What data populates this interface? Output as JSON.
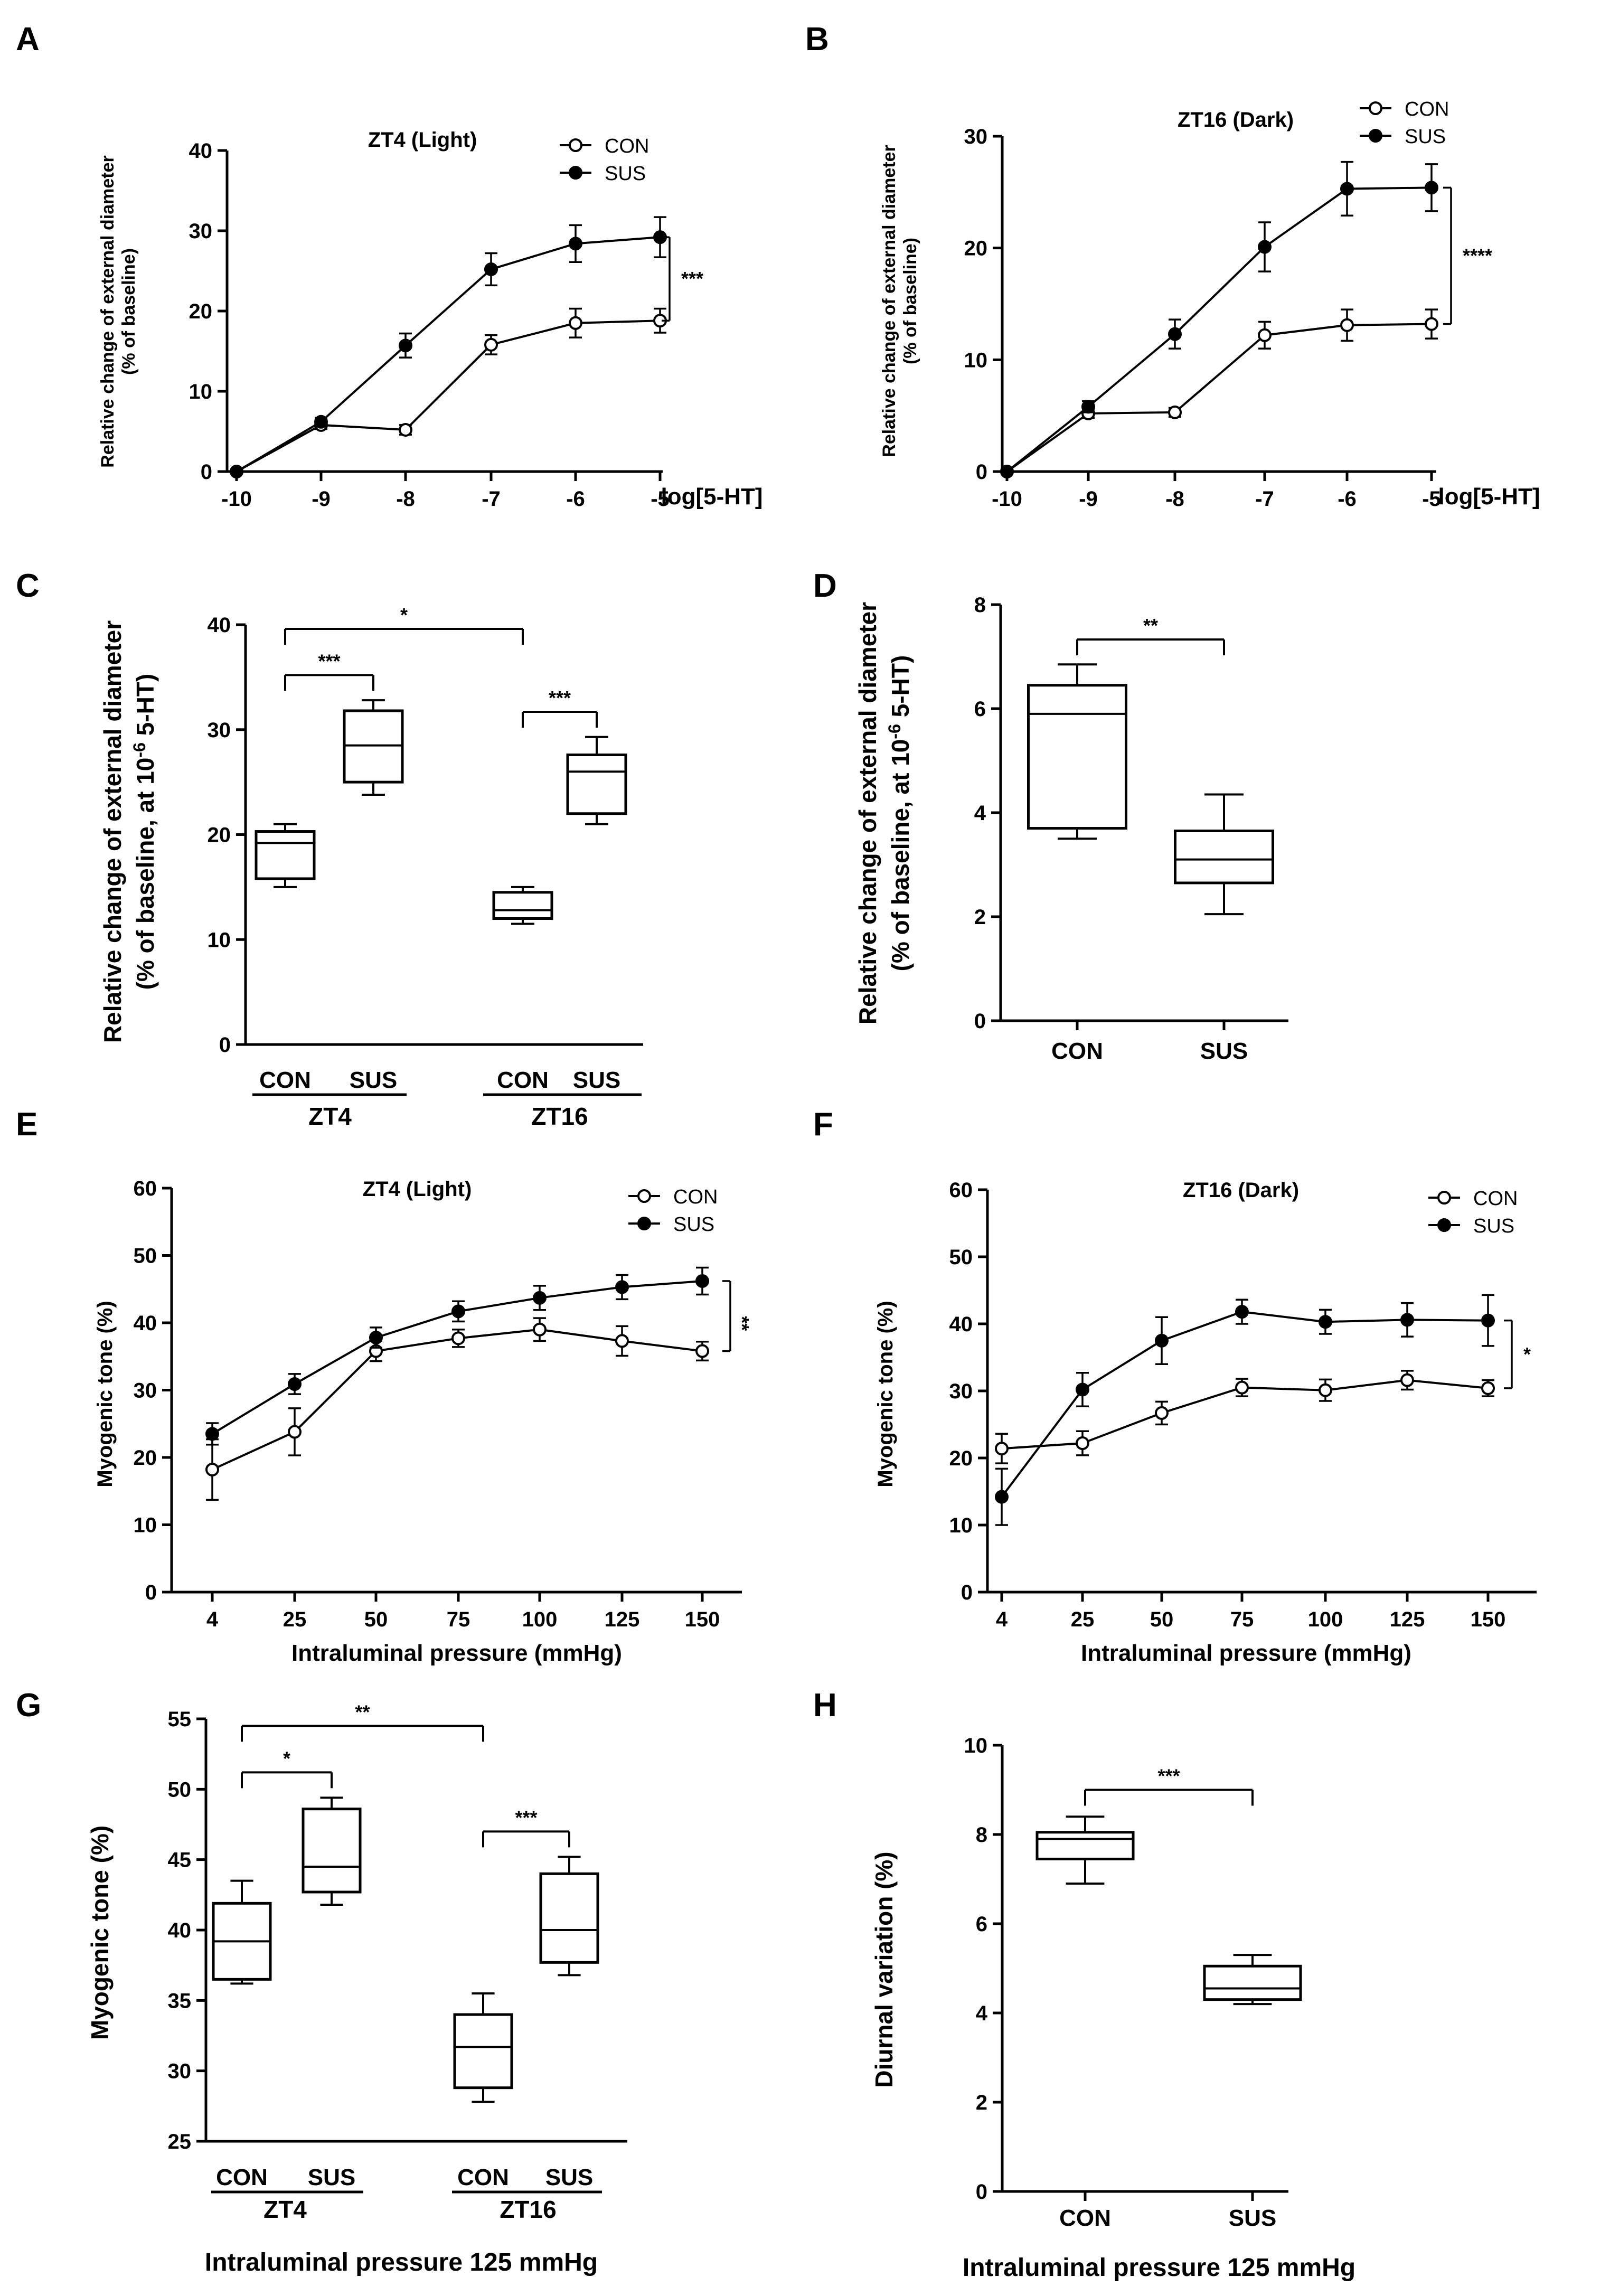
{
  "panels": [
    {
      "id": "A",
      "letter": "A",
      "kind": "line",
      "chart_data": {
        "type": "line",
        "title": "ZT4 (Light)",
        "xlabel": "log[5-HT]",
        "ylabel_lines": [
          "Relative change of external diameter",
          "(% of baseline)"
        ],
        "categories": [
          "-10",
          "-9",
          "-8",
          "-7",
          "-6",
          "-5"
        ],
        "ylim": [
          0,
          40
        ],
        "yticks": [
          0,
          10,
          20,
          30,
          40
        ],
        "legend": "top-right",
        "series": [
          {
            "name": "CON",
            "marker": "open",
            "values": [
              0,
              5.8,
              5.2,
              15.8,
              18.5,
              18.8
            ],
            "errors": [
              0.3,
              0.5,
              0.6,
              1.2,
              1.8,
              1.5
            ]
          },
          {
            "name": "SUS",
            "marker": "filled",
            "values": [
              0,
              6.2,
              15.7,
              25.2,
              28.4,
              29.2
            ],
            "errors": [
              0.3,
              0.5,
              1.5,
              2.0,
              2.3,
              2.5
            ]
          }
        ],
        "annotations": [
          {
            "text": "***",
            "between": [
              "CON",
              "SUS"
            ],
            "at": "-5"
          }
        ]
      }
    },
    {
      "id": "B",
      "letter": "B",
      "kind": "line",
      "chart_data": {
        "type": "line",
        "title": "ZT16 (Dark)",
        "xlabel": "log[5-HT]",
        "ylabel_lines": [
          "Relative change of external diameter",
          "(% of baseline)"
        ],
        "categories": [
          "-10",
          "-9",
          "-8",
          "-7",
          "-6",
          "-5"
        ],
        "ylim": [
          0,
          30
        ],
        "yticks": [
          0,
          10,
          20,
          30
        ],
        "legend": "top-right",
        "series": [
          {
            "name": "CON",
            "marker": "open",
            "values": [
              0,
              5.2,
              5.3,
              12.2,
              13.1,
              13.2
            ],
            "errors": [
              0.2,
              0.4,
              0.4,
              1.2,
              1.4,
              1.3
            ]
          },
          {
            "name": "SUS",
            "marker": "filled",
            "values": [
              0,
              5.8,
              12.3,
              20.1,
              25.3,
              25.4
            ],
            "errors": [
              0.2,
              0.5,
              1.3,
              2.2,
              2.4,
              2.1
            ]
          }
        ],
        "annotations": [
          {
            "text": "****",
            "between": [
              "CON",
              "SUS"
            ],
            "at": "-5"
          }
        ]
      }
    },
    {
      "id": "C",
      "letter": "C",
      "kind": "box",
      "chart_data": {
        "type": "box",
        "ylabel_lines": [
          "Relative change of external diameter",
          "(% of baseline, at 10^-6 5-HT)"
        ],
        "ylim": [
          0,
          40
        ],
        "yticks": [
          0,
          10,
          20,
          30,
          40
        ],
        "groups": [
          {
            "label": "ZT4",
            "categories": [
              "CON",
              "SUS"
            ]
          },
          {
            "label": "ZT16",
            "categories": [
              "CON",
              "SUS"
            ]
          }
        ],
        "boxes": [
          {
            "group": "ZT4",
            "label": "CON",
            "min": 15.0,
            "q1": 15.8,
            "median": 19.2,
            "q3": 20.3,
            "max": 21.0
          },
          {
            "group": "ZT4",
            "label": "SUS",
            "min": 23.8,
            "q1": 25.0,
            "median": 28.5,
            "q3": 31.8,
            "max": 32.8
          },
          {
            "group": "ZT16",
            "label": "CON",
            "min": 11.5,
            "q1": 12.0,
            "median": 12.8,
            "q3": 14.5,
            "max": 15.0
          },
          {
            "group": "ZT16",
            "label": "SUS",
            "min": 21.0,
            "q1": 22.0,
            "median": 26.0,
            "q3": 27.6,
            "max": 29.3
          }
        ],
        "annotations": [
          {
            "text": "***",
            "from": 0,
            "to": 1
          },
          {
            "text": "***",
            "from": 2,
            "to": 3
          },
          {
            "text": "*",
            "from": 0,
            "to": 2
          }
        ]
      }
    },
    {
      "id": "D",
      "letter": "D",
      "kind": "box",
      "chart_data": {
        "type": "box",
        "ylabel_lines": [
          "Relative change of external diameter",
          "(% of baseline, at 10^-6 5-HT)"
        ],
        "ylim": [
          0,
          8
        ],
        "yticks": [
          0,
          2,
          4,
          6,
          8
        ],
        "groups": [],
        "boxes": [
          {
            "label": "CON",
            "min": 3.5,
            "q1": 3.7,
            "median": 5.9,
            "q3": 6.45,
            "max": 6.85
          },
          {
            "label": "SUS",
            "min": 2.05,
            "q1": 2.65,
            "median": 3.1,
            "q3": 3.65,
            "max": 4.35
          }
        ],
        "annotations": [
          {
            "text": "**",
            "from": 0,
            "to": 1
          }
        ]
      }
    },
    {
      "id": "E",
      "letter": "E",
      "kind": "line",
      "chart_data": {
        "type": "line",
        "title": "ZT4 (Light)",
        "xlabel": "Intraluminal pressure (mmHg)",
        "ylabel_lines": [
          "Myogenic tone (%)"
        ],
        "categories": [
          "4",
          "25",
          "50",
          "75",
          "100",
          "125",
          "150"
        ],
        "ylim": [
          0,
          60
        ],
        "yticks": [
          0,
          10,
          20,
          30,
          40,
          50,
          60
        ],
        "legend": "top-right",
        "series": [
          {
            "name": "CON",
            "marker": "open",
            "values": [
              18.2,
              23.8,
              35.8,
              37.7,
              39.0,
              37.3,
              35.8
            ],
            "errors": [
              4.5,
              3.5,
              1.5,
              1.3,
              1.7,
              2.2,
              1.4
            ]
          },
          {
            "name": "SUS",
            "marker": "filled",
            "values": [
              23.5,
              30.9,
              37.8,
              41.7,
              43.7,
              45.3,
              46.2
            ],
            "errors": [
              1.6,
              1.5,
              1.5,
              1.5,
              1.8,
              1.8,
              2.0
            ]
          }
        ],
        "annotations": [
          {
            "text": "**",
            "between": [
              "CON",
              "SUS"
            ],
            "at": "150"
          }
        ]
      }
    },
    {
      "id": "F",
      "letter": "F",
      "kind": "line",
      "chart_data": {
        "type": "line",
        "title": "ZT16 (Dark)",
        "xlabel": "Intraluminal pressure (mmHg)",
        "ylabel_lines": [
          "Myogenic tone (%)"
        ],
        "categories": [
          "4",
          "25",
          "50",
          "75",
          "100",
          "125",
          "150"
        ],
        "ylim": [
          0,
          60
        ],
        "yticks": [
          0,
          10,
          20,
          30,
          40,
          50,
          60
        ],
        "legend": "top-right",
        "series": [
          {
            "name": "CON",
            "marker": "open",
            "values": [
              21.4,
              22.2,
              26.7,
              30.5,
              30.1,
              31.6,
              30.4
            ],
            "errors": [
              2.2,
              1.8,
              1.7,
              1.3,
              1.6,
              1.4,
              1.2
            ]
          },
          {
            "name": "SUS",
            "marker": "filled",
            "values": [
              14.2,
              30.2,
              37.5,
              41.8,
              40.3,
              40.6,
              40.5
            ],
            "errors": [
              4.2,
              2.5,
              3.5,
              1.8,
              1.8,
              2.5,
              3.8
            ]
          }
        ],
        "annotations": [
          {
            "text": "*",
            "between": [
              "CON",
              "SUS"
            ],
            "at": "150"
          }
        ]
      }
    },
    {
      "id": "G",
      "letter": "G",
      "kind": "box",
      "chart_data": {
        "type": "box",
        "ylabel_lines": [
          "Myogenic tone (%)"
        ],
        "xlabel": "Intraluminal pressure 125 mmHg",
        "ylim": [
          25,
          55
        ],
        "yticks": [
          25,
          30,
          35,
          40,
          45,
          50,
          55
        ],
        "groups": [
          {
            "label": "ZT4",
            "categories": [
              "CON",
              "SUS"
            ]
          },
          {
            "label": "ZT16",
            "categories": [
              "CON",
              "SUS"
            ]
          }
        ],
        "boxes": [
          {
            "group": "ZT4",
            "label": "CON",
            "min": 36.2,
            "q1": 36.5,
            "median": 39.2,
            "q3": 41.9,
            "max": 43.5
          },
          {
            "group": "ZT4",
            "label": "SUS",
            "min": 41.8,
            "q1": 42.7,
            "median": 44.5,
            "q3": 48.6,
            "max": 49.4
          },
          {
            "group": "ZT16",
            "label": "CON",
            "min": 27.8,
            "q1": 28.8,
            "median": 31.7,
            "q3": 34.0,
            "max": 35.5
          },
          {
            "group": "ZT16",
            "label": "SUS",
            "min": 36.8,
            "q1": 37.7,
            "median": 40.0,
            "q3": 44.0,
            "max": 45.2
          }
        ],
        "annotations": [
          {
            "text": "*",
            "from": 0,
            "to": 1
          },
          {
            "text": "***",
            "from": 2,
            "to": 3
          },
          {
            "text": "**",
            "from": 0,
            "to": 2
          }
        ]
      }
    },
    {
      "id": "H",
      "letter": "H",
      "kind": "box",
      "chart_data": {
        "type": "box",
        "ylabel_lines": [
          "Diurnal variation (%)"
        ],
        "xlabel": "Intraluminal pressure 125 mmHg",
        "ylim": [
          0,
          10
        ],
        "yticks": [
          0,
          2,
          4,
          6,
          8,
          10
        ],
        "groups": [],
        "boxes": [
          {
            "label": "CON",
            "min": 6.9,
            "q1": 7.45,
            "median": 7.9,
            "q3": 8.05,
            "max": 8.4
          },
          {
            "label": "SUS",
            "min": 4.2,
            "q1": 4.3,
            "median": 4.55,
            "q3": 5.05,
            "max": 5.3
          }
        ],
        "annotations": [
          {
            "text": "***",
            "from": 0,
            "to": 1
          }
        ]
      }
    }
  ]
}
